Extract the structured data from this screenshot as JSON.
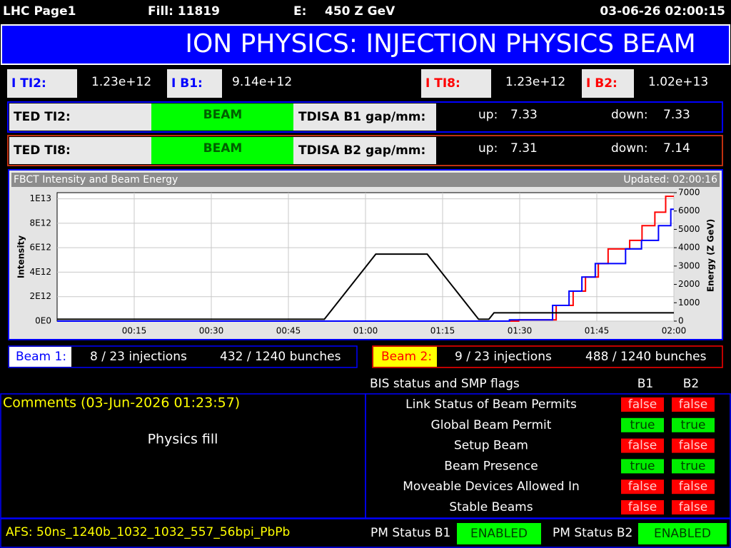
{
  "header": {
    "page": "LHC Page1",
    "fill": "Fill: 11819",
    "energy_label": "E:",
    "energy": "450 Z GeV",
    "timestamp": "03-06-26 02:00:15"
  },
  "banner": "ION PHYSICS: INJECTION PHYSICS BEAM",
  "intensities": [
    {
      "label": "I TI2:",
      "value": "1.23e+12"
    },
    {
      "label": "I B1:",
      "value": "9.14e+12"
    },
    {
      "label": "I TI8:",
      "value": "1.23e+12"
    },
    {
      "label": "I B2:",
      "value": "1.02e+13"
    }
  ],
  "ted": [
    {
      "label": "TED TI2:",
      "state": "BEAM",
      "tdisa": "TDISA B1 gap/mm:",
      "up_label": "up:",
      "up": "7.33",
      "down_label": "down:",
      "down": "7.33"
    },
    {
      "label": "TED TI8:",
      "state": "BEAM",
      "tdisa": "TDISA B2 gap/mm:",
      "up_label": "up:",
      "up": "7.31",
      "down_label": "down:",
      "down": "7.14"
    }
  ],
  "chart_data": {
    "type": "line",
    "title": "FBCT Intensity and Beam Energy",
    "updated": "Updated: 02:00:16",
    "ylabel": "Intensity",
    "y2label": "Energy (Z GeV)",
    "grid": true,
    "xlim": [
      0,
      120
    ],
    "xticks": [
      {
        "value": 15,
        "label": "00:15"
      },
      {
        "value": 30,
        "label": "00:30"
      },
      {
        "value": 45,
        "label": "00:45"
      },
      {
        "value": 60,
        "label": "01:00"
      },
      {
        "value": 75,
        "label": "01:15"
      },
      {
        "value": 90,
        "label": "01:30"
      },
      {
        "value": 105,
        "label": "01:45"
      },
      {
        "value": 120,
        "label": "02:00"
      }
    ],
    "ylim": [
      0,
      10500000000000.0
    ],
    "yticks": [
      {
        "value": 0,
        "label": "0E0"
      },
      {
        "value": 2000000000000.0,
        "label": "2E12"
      },
      {
        "value": 4000000000000.0,
        "label": "4E12"
      },
      {
        "value": 6000000000000.0,
        "label": "6E12"
      },
      {
        "value": 8000000000000.0,
        "label": "8E12"
      },
      {
        "value": 10000000000000.0,
        "label": "1E13"
      }
    ],
    "y2lim": [
      0,
      7000
    ],
    "y2ticks": [
      0,
      1000,
      2000,
      3000,
      4000,
      5000,
      6000,
      7000
    ],
    "series": [
      {
        "color": "#ff0000",
        "axis": "y",
        "x": [
          0,
          89.8,
          89.8,
          97.1,
          97.1,
          100.4,
          100.4,
          102.8,
          102.8,
          105.3,
          105.3,
          107.2,
          107.2,
          111.4,
          111.4,
          113.8,
          113.8,
          116.3,
          116.3,
          118.4,
          118.4,
          120
        ],
        "values": [
          0,
          0,
          100000000000.0,
          100000000000.0,
          1280000000000.0,
          1280000000000.0,
          2450000000000.0,
          2450000000000.0,
          3600000000000.0,
          3600000000000.0,
          4700000000000.0,
          4700000000000.0,
          5900000000000.0,
          5900000000000.0,
          6600000000000.0,
          6600000000000.0,
          7800000000000.0,
          7800000000000.0,
          8900000000000.0,
          8900000000000.0,
          10200000000000.0,
          10200000000000.0
        ]
      },
      {
        "color": "#0000ff",
        "axis": "y",
        "x": [
          0,
          88,
          88,
          96.4,
          96.4,
          99.6,
          99.6,
          102.1,
          102.1,
          104.7,
          104.7,
          110.6,
          110.6,
          113.7,
          113.7,
          117,
          117,
          119.4,
          119.4,
          120
        ],
        "values": [
          0,
          0,
          100000000000.0,
          100000000000.0,
          1280000000000.0,
          1280000000000.0,
          2450000000000.0,
          2450000000000.0,
          3600000000000.0,
          3600000000000.0,
          4700000000000.0,
          4700000000000.0,
          5900000000000.0,
          5900000000000.0,
          6600000000000.0,
          6600000000000.0,
          7800000000000.0,
          7800000000000.0,
          9140000000000.0,
          9140000000000.0
        ]
      },
      {
        "color": "#000000",
        "axis": "y2",
        "x": [
          0,
          52,
          62,
          72,
          82,
          84,
          85,
          120
        ],
        "values": [
          100,
          100,
          3650,
          3650,
          100,
          100,
          450,
          450
        ]
      }
    ]
  },
  "beams": [
    {
      "label": "Beam 1:",
      "injections": "8 / 23 injections",
      "bunches": "432 / 1240 bunches"
    },
    {
      "label": "Beam 2:",
      "injections": "9 / 23 injections",
      "bunches": "488 / 1240 bunches"
    }
  ],
  "bis": {
    "title": "BIS status and SMP flags",
    "columns": [
      "B1",
      "B2"
    ],
    "rows": [
      {
        "label": "Link Status of Beam Permits",
        "b1": "false",
        "b2": "false"
      },
      {
        "label": "Global Beam Permit",
        "b1": "true",
        "b2": "true"
      },
      {
        "label": "Setup Beam",
        "b1": "false",
        "b2": "false"
      },
      {
        "label": "Beam Presence",
        "b1": "true",
        "b2": "true"
      },
      {
        "label": "Moveable Devices Allowed In",
        "b1": "false",
        "b2": "false"
      },
      {
        "label": "Stable Beams",
        "b1": "false",
        "b2": "false"
      }
    ]
  },
  "comments": {
    "title": "Comments (03-Jun-2026 01:23:57)",
    "text": "Physics fill"
  },
  "footer": {
    "afs": "AFS: 50ns_1240b_1032_1032_557_56bpi_PbPb",
    "pm": [
      {
        "label": "PM Status B1",
        "state": "ENABLED"
      },
      {
        "label": "PM Status B2",
        "state": "ENABLED"
      }
    ]
  }
}
